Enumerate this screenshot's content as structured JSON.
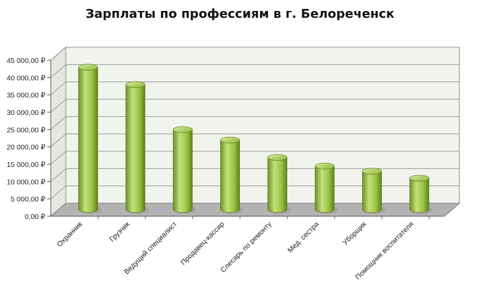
{
  "chart_data": {
    "type": "bar",
    "title": "Зарплаты по профессиям в г. Белореченск",
    "categories": [
      "Охранник",
      "Грузчик",
      "Ведущий  специалист",
      "Продавец-кассир",
      "Слесарь по ремонту",
      "Мед. сестра",
      "Уборщик",
      "Помощник воспитателя"
    ],
    "values": [
      41000,
      36000,
      23000,
      20000,
      15000,
      12500,
      11000,
      9000
    ],
    "yticks": [
      "0,00 ₽",
      "5 000,00 ₽",
      "10 000,00 ₽",
      "15 000,00 ₽",
      "20 000,00 ₽",
      "25 000,00 ₽",
      "30 000,00 ₽",
      "35 000,00 ₽",
      "40 000,00 ₽",
      "45 000,00 ₽"
    ],
    "ylim": [
      0,
      45000
    ],
    "grid": true,
    "colors": {
      "bar_light": "#c5e07a",
      "bar_mid": "#9cc445",
      "bar_dark": "#5f7f1e",
      "wall": "#f1f4ec",
      "floor": "#b3b3b3",
      "grid": "#9a9a9a"
    }
  }
}
